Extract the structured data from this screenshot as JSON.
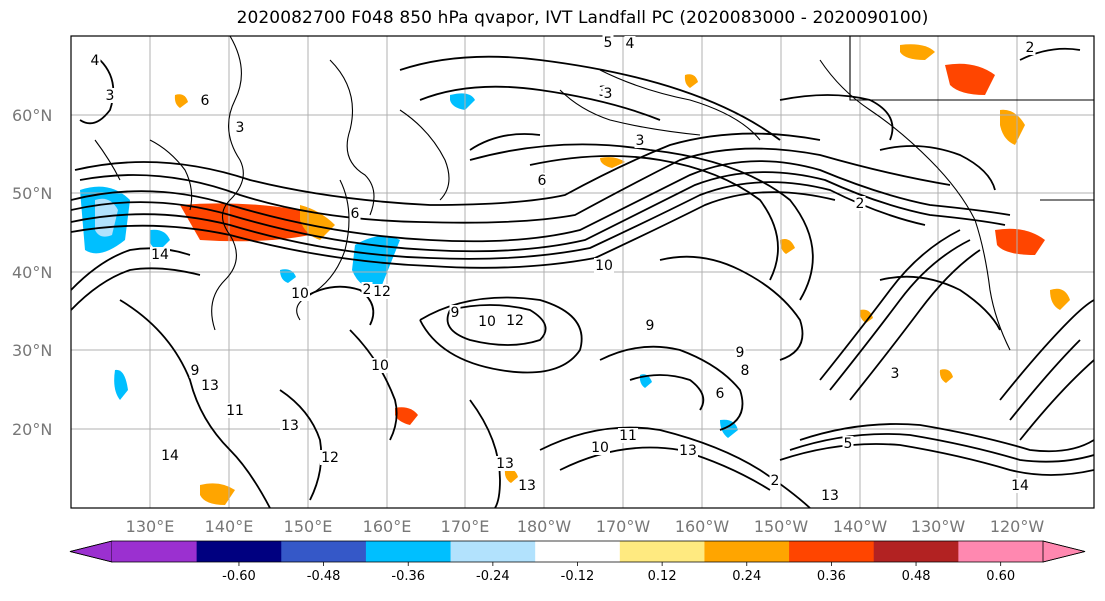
{
  "title": "2020082700 F048 850 hPa qvapor, IVT Landfall PC (2020083000 - 2020090100)",
  "map": {
    "lat_labels": [
      "60°N",
      "50°N",
      "40°N",
      "30°N",
      "20°N"
    ],
    "lon_labels": [
      "130°E",
      "140°E",
      "150°E",
      "160°E",
      "170°E",
      "180°W",
      "170°W",
      "160°W",
      "150°W",
      "140°W",
      "130°W",
      "120°W"
    ]
  },
  "colorbar": {
    "colors": [
      "#9b30d0",
      "#000080",
      "#3558c8",
      "#00bfff",
      "#b2e2fd",
      "#ffffff",
      "#ffea80",
      "#ffa500",
      "#ff4500",
      "#b22222",
      "#ff88b0"
    ],
    "tick_labels": [
      "-0.60",
      "-0.48",
      "-0.36",
      "-0.24",
      "-0.12",
      "0.12",
      "0.24",
      "0.36",
      "0.48",
      "0.60"
    ]
  },
  "contour_labels": [
    "4",
    "3",
    "6",
    "3",
    "3",
    "4",
    "5",
    "3",
    "6",
    "2",
    "2",
    "3",
    "6",
    "14",
    "10",
    "2",
    "12",
    "10",
    "9",
    "10",
    "9",
    "6",
    "9",
    "13",
    "11",
    "13",
    "12",
    "14",
    "10",
    "12",
    "13",
    "13",
    "11",
    "10",
    "8",
    "9",
    "13",
    "2",
    "13",
    "5",
    "14",
    "3"
  ]
}
